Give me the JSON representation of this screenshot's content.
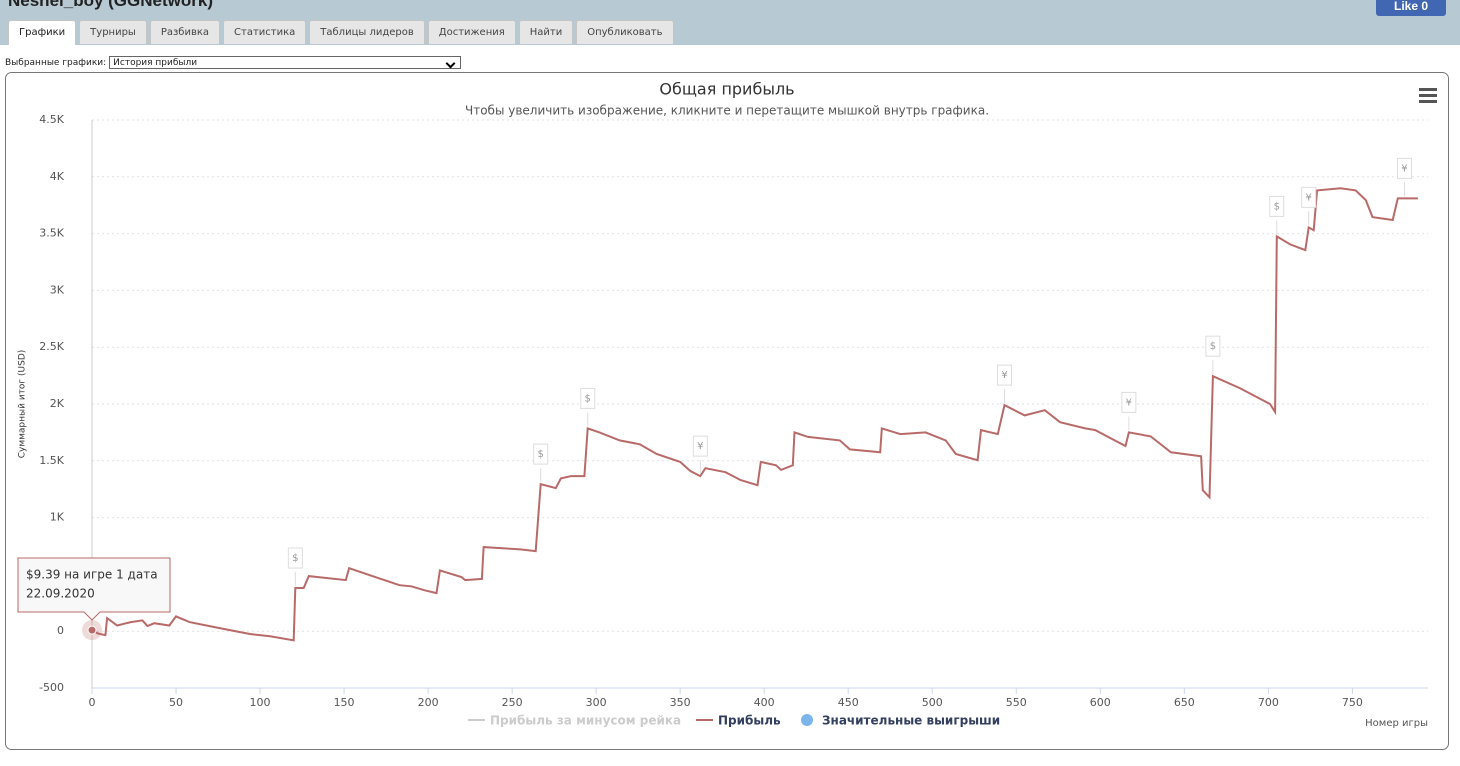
{
  "header": {
    "title": "Neshel_boy (GGNetwork)",
    "like_button": "Like 0"
  },
  "tabs": [
    "Графики",
    "Турниры",
    "Разбивка",
    "Статистика",
    "Таблицы лидеров",
    "Достижения",
    "Найти",
    "Опубликовать"
  ],
  "selector": {
    "label": "Выбранные графики:",
    "value": "История прибыли"
  },
  "chart_data": {
    "type": "line",
    "title": "Общая прибыль",
    "subtitle": "Чтобы увеличить изображение, кликните и перетащите мышкой внутрь графика.",
    "y_label": "Суммарный итог (USD)",
    "x_label": "Номер игры",
    "xlim": [
      0,
      795
    ],
    "xticks": [
      0,
      50,
      100,
      150,
      200,
      250,
      300,
      350,
      400,
      450,
      500,
      550,
      600,
      650,
      700,
      750
    ],
    "ylim": [
      -500,
      4500
    ],
    "yticks": [
      -500,
      0,
      {
        "value": 1000,
        "label": "1K"
      },
      {
        "value": 1500,
        "label": "1.5K"
      },
      {
        "value": 2000,
        "label": "2K"
      },
      {
        "value": 2500,
        "label": "2.5K"
      },
      {
        "value": 3000,
        "label": "3K"
      },
      {
        "value": 3500,
        "label": "3.5K"
      },
      {
        "value": 4000,
        "label": "4K"
      },
      {
        "value": 4500,
        "label": "4.5K"
      }
    ],
    "grid": true,
    "series": [
      {
        "name": "Прибыль за минусом рейка",
        "color": "#cccccc",
        "hidden": true
      },
      {
        "name": "Прибыль",
        "color": "#b86a68",
        "x": [
          0,
          3.6,
          8,
          9,
          15,
          23,
          30,
          33,
          37,
          46,
          50,
          58,
          70,
          82,
          94,
          106,
          120,
          121,
          126,
          129,
          151,
          153,
          171,
          183,
          190,
          198,
          205,
          207,
          220,
          222,
          232,
          233,
          255,
          264,
          267,
          276,
          279,
          285,
          293,
          295,
          302,
          314,
          326,
          336,
          350,
          356,
          362,
          365,
          377,
          386,
          396,
          398,
          407,
          410,
          417,
          418,
          426,
          445,
          451,
          469,
          470,
          481,
          496,
          508,
          514,
          527,
          529,
          539,
          543,
          555,
          567,
          576,
          591,
          597,
          606,
          615,
          617,
          630,
          642,
          660,
          661,
          665,
          667,
          683,
          701,
          704,
          705,
          713,
          722,
          724,
          727,
          729,
          743,
          752,
          758,
          762,
          774,
          777,
          789
        ],
        "values": [
          9.39,
          -20,
          -35,
          115,
          50,
          80,
          95,
          45,
          70,
          50,
          130,
          80,
          45,
          10,
          -25,
          -45,
          -80,
          380,
          380,
          485,
          450,
          555,
          465,
          405,
          395,
          360,
          335,
          535,
          475,
          450,
          460,
          740,
          720,
          705,
          1295,
          1260,
          1345,
          1365,
          1365,
          1785,
          1750,
          1680,
          1645,
          1560,
          1490,
          1410,
          1365,
          1435,
          1400,
          1330,
          1285,
          1490,
          1460,
          1420,
          1460,
          1750,
          1710,
          1680,
          1600,
          1575,
          1785,
          1735,
          1750,
          1680,
          1560,
          1505,
          1770,
          1735,
          1990,
          1900,
          1945,
          1840,
          1785,
          1770,
          1700,
          1630,
          1750,
          1715,
          1575,
          1540,
          1240,
          1180,
          2245,
          2140,
          2000,
          1930,
          3475,
          3405,
          3355,
          3555,
          3530,
          3880,
          3900,
          3880,
          3795,
          3645,
          3620,
          3810,
          3810
        ]
      },
      {
        "name": "Значительные выигрыши",
        "color": "#7cb5ec",
        "type": "flags",
        "x": [
          121,
          267,
          295,
          362,
          543,
          617,
          667,
          705,
          724,
          781
        ],
        "labels": [
          "$",
          "$",
          "$",
          "¥",
          "¥",
          "¥",
          "$",
          "$",
          "¥",
          "¥"
        ]
      }
    ],
    "tooltip": {
      "lines": [
        "$9.39 на игре 1 дата",
        "22.09.2020"
      ]
    }
  }
}
